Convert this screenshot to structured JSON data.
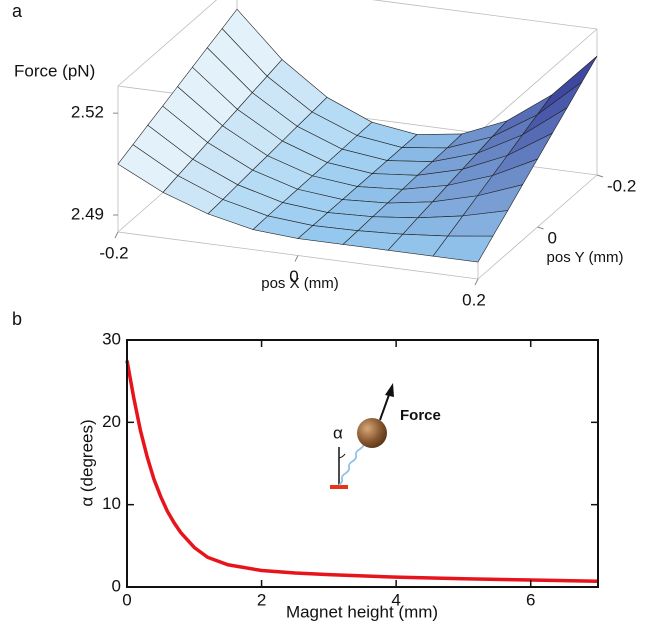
{
  "chart_data": [
    {
      "type": "surface",
      "panel": "a",
      "zlabel": "Force (pN)",
      "xlabel": "pos X (mm)",
      "ylabel": "pos Y (mm)",
      "x": [
        -0.2,
        -0.15,
        -0.1,
        -0.05,
        0,
        0.05,
        0.1,
        0.15,
        0.2
      ],
      "y": [
        -0.2,
        -0.15,
        -0.1,
        -0.05,
        0,
        0.05,
        0.1,
        0.15,
        0.2
      ],
      "z": [
        [
          2.52,
          2.5069,
          2.4975,
          2.4919,
          2.49,
          2.4919,
          2.4975,
          2.5069,
          2.52
        ],
        [
          2.5181,
          2.5058,
          2.497,
          2.4918,
          2.49,
          2.4916,
          2.4966,
          2.5048,
          2.5163
        ],
        [
          2.5163,
          2.5048,
          2.4966,
          2.4916,
          2.49,
          2.4914,
          2.4956,
          2.5027,
          2.5125
        ],
        [
          2.5144,
          2.5037,
          2.4961,
          2.4915,
          2.49,
          2.4912,
          2.4947,
          2.5005,
          2.5088
        ],
        [
          2.5125,
          2.5027,
          2.4956,
          2.4914,
          2.49,
          2.4909,
          2.4938,
          2.4984,
          2.505
        ],
        [
          2.5106,
          2.5016,
          2.4952,
          2.4913,
          2.49,
          2.4907,
          2.4928,
          2.4963,
          2.5013
        ],
        [
          2.5088,
          2.5005,
          2.4947,
          2.4912,
          2.49,
          2.4905,
          2.4919,
          2.4942,
          2.4975
        ],
        [
          2.5069,
          2.4995,
          2.4942,
          2.4911,
          2.49,
          2.4902,
          2.4909,
          2.4921,
          2.4938
        ],
        [
          2.505,
          2.4984,
          2.4938,
          2.4909,
          2.49,
          2.49,
          2.49,
          2.49,
          2.49
        ]
      ],
      "xlim": [
        -0.2,
        0.2
      ],
      "ylim": [
        -0.2,
        0.2
      ],
      "zlim": [
        2.485,
        2.528
      ],
      "xticks": [
        -0.2,
        0,
        0.2
      ],
      "yticks": [
        -0.2,
        0
      ],
      "zticks": [
        2.49,
        2.52
      ],
      "colors": [
        "#eef8fc",
        "#95c9ef",
        "#2c2c8c"
      ]
    },
    {
      "type": "line",
      "panel": "b",
      "xlabel": "Magnet height (mm)",
      "ylabel": "α (degrees)",
      "x": [
        0,
        0.1,
        0.2,
        0.3,
        0.4,
        0.5,
        0.6,
        0.7,
        0.8,
        1,
        1.2,
        1.5,
        2,
        2.5,
        3,
        4,
        5,
        6,
        7
      ],
      "series": [
        {
          "color": "#e8141b",
          "values": [
            27.5,
            23,
            19,
            15.8,
            13.1,
            11,
            9.2,
            7.8,
            6.6,
            4.8,
            3.6,
            2.7,
            2.0,
            1.7,
            1.5,
            1.2,
            1.0,
            0.85,
            0.7
          ]
        }
      ],
      "xlim": [
        0,
        7
      ],
      "ylim": [
        0,
        30
      ],
      "xticks": [
        0,
        2,
        4,
        6
      ],
      "yticks": [
        0,
        10,
        20,
        30
      ],
      "annotations": [
        "Force",
        "α"
      ]
    }
  ]
}
